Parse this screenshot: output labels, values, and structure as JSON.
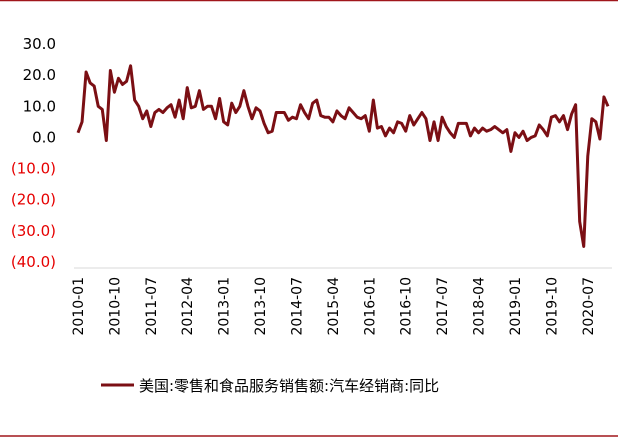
{
  "colors": {
    "series": "#7B0F14",
    "border": "#A0161B",
    "positive_label": "#000000",
    "negative_label": "#E60000"
  },
  "chart_data": {
    "type": "line",
    "title": "",
    "xlabel": "",
    "ylabel": "",
    "ylim": [
      -40,
      30
    ],
    "y_ticks": [
      "30.0",
      "20.0",
      "10.0",
      "0.0",
      "(10.0)",
      "(20.0)",
      "(30.0)",
      "(40.0)"
    ],
    "x_ticks": [
      "2010-01",
      "2010-10",
      "2011-07",
      "2012-04",
      "2013-01",
      "2013-10",
      "2014-07",
      "2015-04",
      "2016-01",
      "2016-10",
      "2017-07",
      "2018-04",
      "2019-01",
      "2019-10",
      "2020-07"
    ],
    "grid": false,
    "legend_position": "bottom",
    "x_start": "2010-01",
    "x_end": "2020-10",
    "series": [
      {
        "name": "美国:零售和食品服务销售额:汽车经销商:同比",
        "values": [
          1.5,
          5.0,
          21.0,
          17.5,
          16.5,
          10.0,
          9.0,
          -1.0,
          21.5,
          14.5,
          19.0,
          17.0,
          18.0,
          23.0,
          12.0,
          10.0,
          6.0,
          8.5,
          3.5,
          8.0,
          9.0,
          8.0,
          9.5,
          10.5,
          6.5,
          12.0,
          6.0,
          16.0,
          9.5,
          10.0,
          15.0,
          9.0,
          10.0,
          10.0,
          6.0,
          12.5,
          5.0,
          4.0,
          11.0,
          8.0,
          10.0,
          15.0,
          10.0,
          6.0,
          9.5,
          8.5,
          4.5,
          1.5,
          2.0,
          8.0,
          8.0,
          8.0,
          5.5,
          6.5,
          6.0,
          10.5,
          8.0,
          6.0,
          11.0,
          12.0,
          7.0,
          6.5,
          6.5,
          5.0,
          8.5,
          7.0,
          6.0,
          9.5,
          8.0,
          6.5,
          6.0,
          7.0,
          2.0,
          12.0,
          3.0,
          3.5,
          0.5,
          3.0,
          1.5,
          5.0,
          4.5,
          2.0,
          7.0,
          4.0,
          6.0,
          8.0,
          6.0,
          -1.0,
          5.0,
          -1.0,
          6.5,
          3.5,
          1.5,
          0.0,
          4.5,
          4.5,
          4.5,
          0.5,
          3.0,
          1.5,
          3.0,
          2.0,
          2.5,
          3.5,
          2.5,
          1.5,
          2.5,
          -4.5,
          1.5,
          0.0,
          2.0,
          -1.0,
          0.0,
          0.5,
          4.0,
          2.5,
          0.5,
          6.5,
          7.0,
          5.0,
          7.0,
          2.5,
          7.5,
          10.5,
          -27.0,
          -35.0,
          -6.0,
          6.0,
          5.0,
          -0.5,
          13.0,
          10.0
        ]
      }
    ]
  }
}
